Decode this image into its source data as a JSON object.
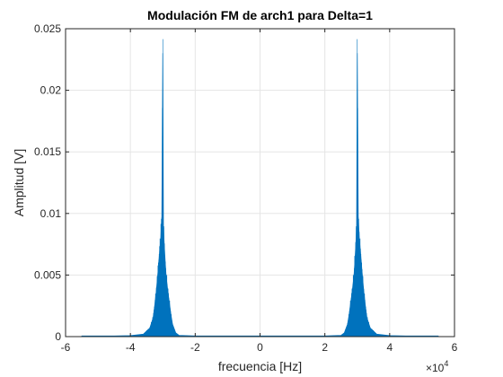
{
  "chart_data": {
    "type": "line",
    "title": "Modulación FM de arch1 para Delta=1",
    "xlabel": "frecuencia [Hz]",
    "ylabel": "Amplitud [V]",
    "x_multiplier": {
      "base": "×10",
      "exponent": "4"
    },
    "xlim": [
      -60000,
      60000
    ],
    "ylim": [
      0,
      0.025
    ],
    "xticks": [
      -60000,
      -40000,
      -20000,
      0,
      20000,
      40000,
      60000
    ],
    "xtick_labels": [
      "-6",
      "-4",
      "-2",
      "0",
      "2",
      "4",
      "6"
    ],
    "yticks": [
      0,
      0.005,
      0.01,
      0.015,
      0.02,
      0.025
    ],
    "ytick_labels": [
      "0",
      "0.005",
      "0.01",
      "0.015",
      "0.02",
      "0.025"
    ],
    "grid": true,
    "line_color": "#0072BD",
    "series": [
      {
        "x": [
          -55000,
          -50000,
          -45000,
          -40000,
          -36000,
          -34000,
          -33000,
          -32500,
          -32000,
          -31500,
          -31000,
          -30600,
          -30300,
          -30000,
          -29800,
          -29500,
          -29200,
          -29000,
          -28500,
          -28000,
          -27500,
          -27000,
          -26000,
          -25000,
          -20000,
          -10000,
          0,
          10000,
          20000,
          25000,
          26000,
          27000,
          27500,
          28000,
          28500,
          29000,
          29200,
          29500,
          29800,
          30000,
          30300,
          30600,
          31000,
          31500,
          32000,
          32500,
          33000,
          34000,
          36000,
          40000,
          45000,
          50000,
          55000
        ],
        "y": [
          5e-05,
          5e-05,
          5e-05,
          8e-05,
          0.0002,
          0.0007,
          0.0015,
          0.0025,
          0.0037,
          0.0052,
          0.0068,
          0.0081,
          0.0097,
          0.023,
          0.0088,
          0.0072,
          0.0058,
          0.005,
          0.0038,
          0.0028,
          0.0018,
          0.001,
          0.0003,
          0.0001,
          5e-05,
          5e-05,
          5e-05,
          5e-05,
          5e-05,
          0.0001,
          0.0003,
          0.001,
          0.0018,
          0.0028,
          0.0038,
          0.005,
          0.0058,
          0.0072,
          0.0088,
          0.023,
          0.0097,
          0.0081,
          0.0068,
          0.0052,
          0.0037,
          0.0025,
          0.0015,
          0.0007,
          0.0002,
          8e-05,
          5e-05,
          5e-05,
          5e-05
        ]
      }
    ]
  }
}
